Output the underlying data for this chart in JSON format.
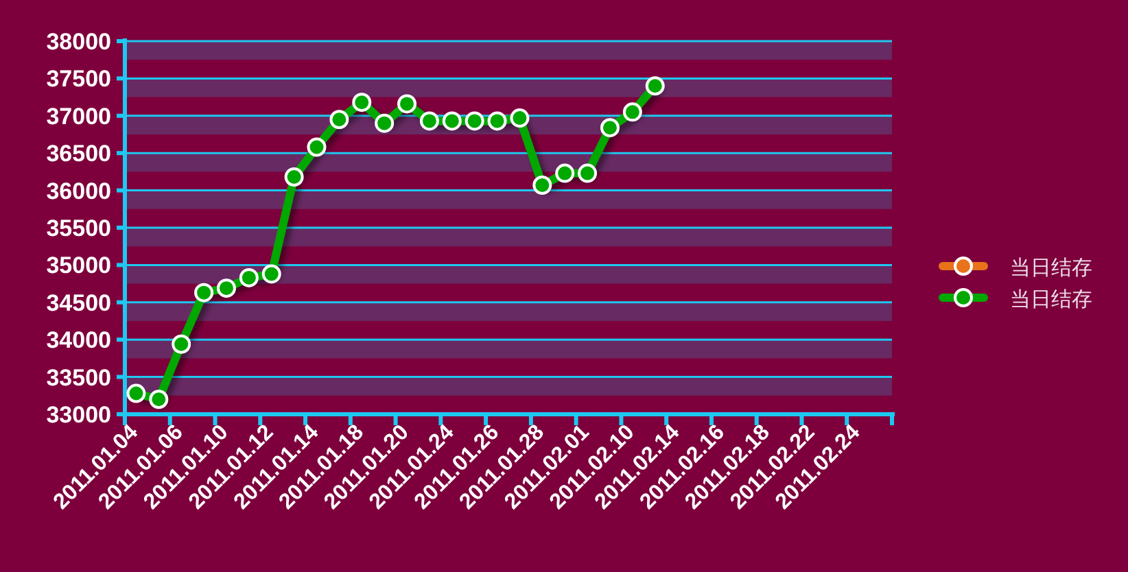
{
  "chart_data": {
    "type": "line",
    "categories": [
      "2011.01.04",
      null,
      "2011.01.06",
      null,
      "2011.01.10",
      null,
      "2011.01.12",
      null,
      "2011.01.14",
      null,
      "2011.01.18",
      null,
      "2011.01.20",
      null,
      "2011.01.24",
      null,
      "2011.01.26",
      null,
      "2011.01.28",
      null,
      "2011.02.01",
      null,
      "2011.02.10",
      null,
      "2011.02.14",
      null,
      "2011.02.16",
      null,
      "2011.02.18",
      null,
      "2011.02.22",
      null,
      "2011.02.24",
      null
    ],
    "series": [
      {
        "name": "当日结存",
        "color": "#e8731a",
        "values": [
          null,
          null,
          null,
          null,
          null,
          null,
          null,
          null,
          null,
          null,
          null,
          null,
          null,
          null,
          null,
          null,
          null,
          null,
          null,
          null,
          null,
          null,
          null,
          null,
          null,
          null,
          null,
          null,
          null,
          null,
          null,
          null,
          null,
          null
        ]
      },
      {
        "name": "当日结存",
        "color": "#00a800",
        "values": [
          33280,
          33200,
          33940,
          34630,
          34690,
          34830,
          34880,
          36180,
          36580,
          36950,
          37180,
          36900,
          37160,
          36930,
          36930,
          36930,
          36930,
          36970,
          36070,
          36230,
          36230,
          36840,
          37050,
          37400,
          null,
          null,
          null,
          null,
          null,
          null,
          null,
          null,
          null,
          null
        ]
      }
    ],
    "ylim": [
      33000,
      38000
    ],
    "yticks": [
      33000,
      33500,
      34000,
      34500,
      35000,
      35500,
      36000,
      36500,
      37000,
      37500,
      38000
    ],
    "bands": [
      {
        "axis": "y",
        "from": 33250,
        "to": 33500,
        "color": "#672a63"
      },
      {
        "axis": "y",
        "from": 33750,
        "to": 34000,
        "color": "#672a63"
      },
      {
        "axis": "y",
        "from": 34250,
        "to": 34500,
        "color": "#672a63"
      },
      {
        "axis": "y",
        "from": 34750,
        "to": 35000,
        "color": "#672a63"
      },
      {
        "axis": "y",
        "from": 35250,
        "to": 35500,
        "color": "#672a63"
      },
      {
        "axis": "y",
        "from": 35750,
        "to": 36000,
        "color": "#672a63"
      },
      {
        "axis": "y",
        "from": 36250,
        "to": 36500,
        "color": "#672a63"
      },
      {
        "axis": "y",
        "from": 36750,
        "to": 37000,
        "color": "#672a63"
      },
      {
        "axis": "y",
        "from": 37250,
        "to": 37500,
        "color": "#672a63"
      },
      {
        "axis": "y",
        "from": 37750,
        "to": 38000,
        "color": "#672a63"
      }
    ],
    "grid": "y",
    "legend": "right",
    "marker": "circle",
    "line_style": "solid"
  }
}
